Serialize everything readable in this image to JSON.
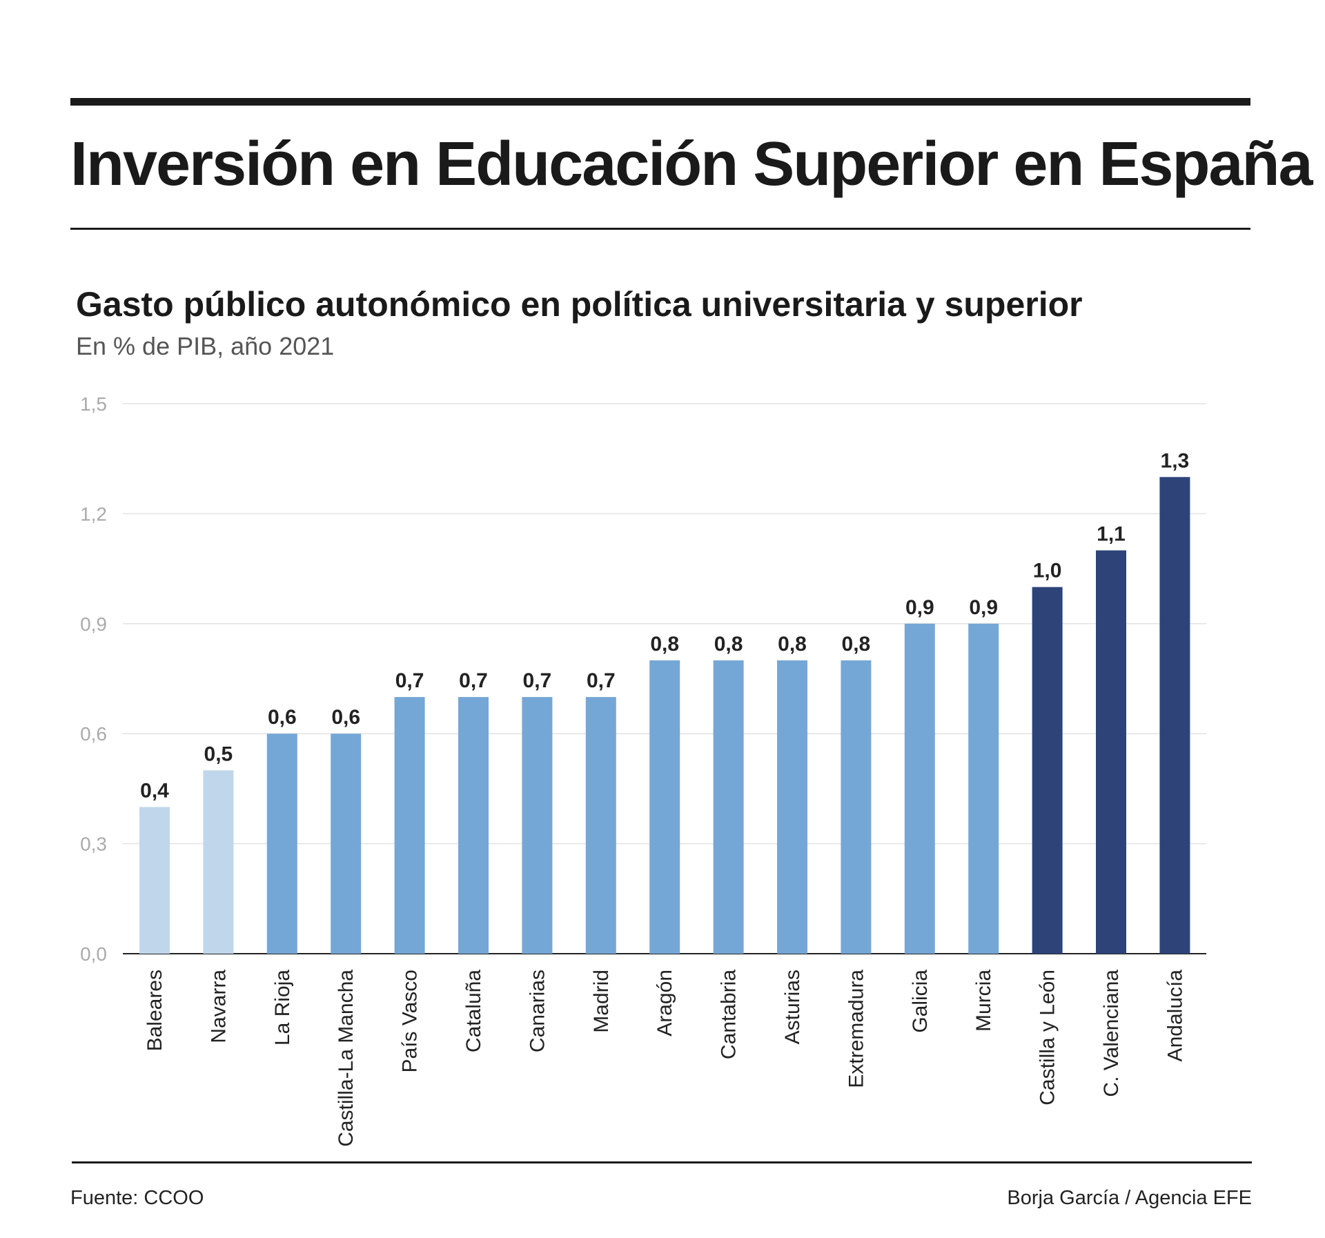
{
  "header": {
    "title": "Inversión en Educación Superior en España"
  },
  "footer": {
    "source": "Fuente: CCOO",
    "credit": "Borja García / Agencia EFE"
  },
  "chart_data": {
    "type": "bar",
    "title": "Gasto público autonómico en política universitaria y superior",
    "subtitle": "En % de PIB, año 2021",
    "xlabel": "",
    "ylabel": "",
    "ylim": [
      0,
      1.5
    ],
    "yticks": [
      "0,0",
      "0,3",
      "0,6",
      "0,9",
      "1,2",
      "1,5"
    ],
    "ytick_values": [
      0,
      0.3,
      0.6,
      0.9,
      1.2,
      1.5
    ],
    "grid": true,
    "categories": [
      "Baleares",
      "Navarra",
      "La Rioja",
      "Castilla-La Mancha",
      "País Vasco",
      "Cataluña",
      "Canarias",
      "Madrid",
      "Aragón",
      "Cantabria",
      "Asturias",
      "Extremadura",
      "Galicia",
      "Murcia",
      "Castilla y León",
      "C. Valenciana",
      "Andalucía"
    ],
    "values": [
      0.4,
      0.5,
      0.6,
      0.6,
      0.7,
      0.7,
      0.7,
      0.7,
      0.8,
      0.8,
      0.8,
      0.8,
      0.9,
      0.9,
      1.0,
      1.1,
      1.3
    ],
    "value_labels": [
      "0,4",
      "0,5",
      "0,6",
      "0,6",
      "0,7",
      "0,7",
      "0,7",
      "0,7",
      "0,8",
      "0,8",
      "0,8",
      "0,8",
      "0,9",
      "0,9",
      "1,0",
      "1,1",
      "1,3"
    ],
    "bar_color_groups": [
      "light",
      "light",
      "mid",
      "mid",
      "mid",
      "mid",
      "mid",
      "mid",
      "mid",
      "mid",
      "mid",
      "mid",
      "mid",
      "mid",
      "dark",
      "dark",
      "dark"
    ],
    "colors": {
      "light": "#c0d6ea",
      "mid": "#75a7d6",
      "dark": "#2e4479"
    }
  }
}
